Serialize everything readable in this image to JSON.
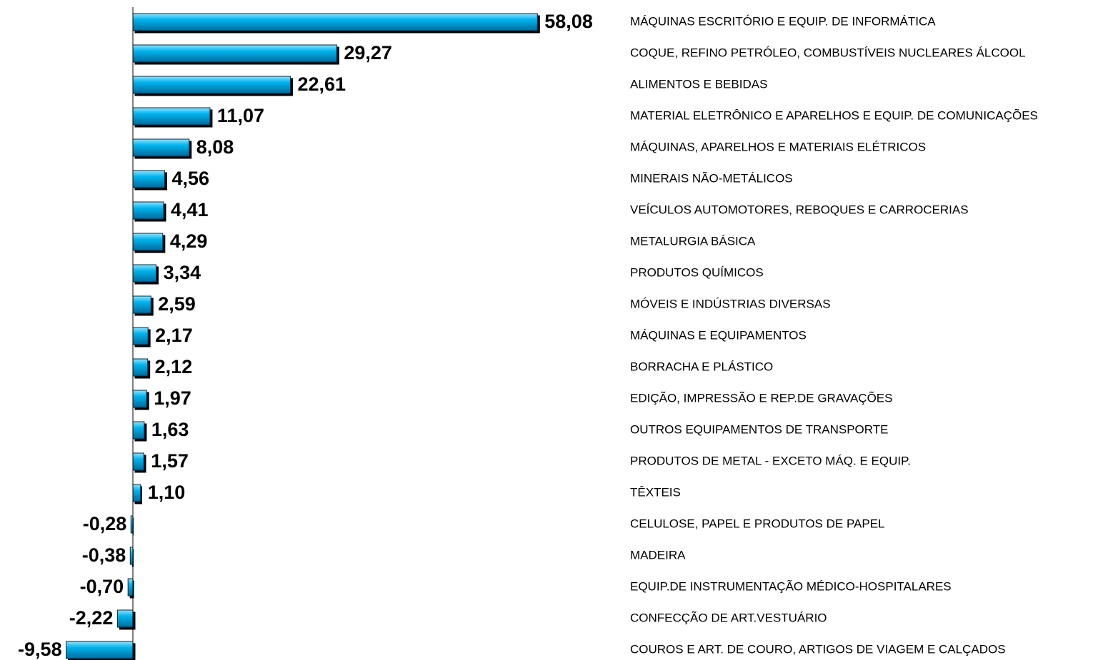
{
  "chart_data": {
    "type": "bar",
    "orientation": "horizontal",
    "color": "#00b4ee",
    "categories": [
      "MÁQUINAS ESCRITÓRIO E EQUIP. DE INFORMÁTICA",
      "COQUE, REFINO PETRÓLEO, COMBUSTÍVEIS NUCLEARES ÁLCOOL",
      "ALIMENTOS E BEBIDAS",
      "MATERIAL ELETRÔNICO E APARELHOS E EQUIP. DE COMUNICAÇÕES",
      "MÁQUINAS, APARELHOS E MATERIAIS ELÉTRICOS",
      "MINERAIS NÃO-METÁLICOS",
      "VEÍCULOS AUTOMOTORES, REBOQUES E CARROCERIAS",
      "METALURGIA BÁSICA",
      "PRODUTOS QUÍMICOS",
      "MÓVEIS E INDÚSTRIAS DIVERSAS",
      "MÁQUINAS E EQUIPAMENTOS",
      "BORRACHA E PLÁSTICO",
      "EDIÇÃO, IMPRESSÃO E REP.DE GRAVAÇÕES",
      "OUTROS EQUIPAMENTOS DE TRANSPORTE",
      "PRODUTOS DE METAL - EXCETO MÁQ. E EQUIP.",
      "TÊXTEIS",
      "CELULOSE, PAPEL E PRODUTOS DE PAPEL",
      "MADEIRA",
      "EQUIP.DE INSTRUMENTAÇÃO MÉDICO-HOSPITALARES",
      "CONFECÇÃO DE ART.VESTUÁRIO",
      "COUROS E ART. DE COURO, ARTIGOS DE VIAGEM E CALÇADOS"
    ],
    "values": [
      58.08,
      29.27,
      22.61,
      11.07,
      8.08,
      4.56,
      4.41,
      4.29,
      3.34,
      2.59,
      2.17,
      2.12,
      1.97,
      1.63,
      1.57,
      1.1,
      -0.28,
      -0.38,
      -0.7,
      -2.22,
      -9.58
    ],
    "value_labels": [
      "58,08",
      "29,27",
      "22,61",
      "11,07",
      "8,08",
      "4,56",
      "4,41",
      "4,29",
      "3,34",
      "2,59",
      "2,17",
      "2,12",
      "1,97",
      "1,63",
      "1,57",
      "1,10",
      "-0,28",
      "-0,38",
      "-0,70",
      "-2,22",
      "-9,58"
    ],
    "xlim": [
      -10,
      60
    ]
  }
}
